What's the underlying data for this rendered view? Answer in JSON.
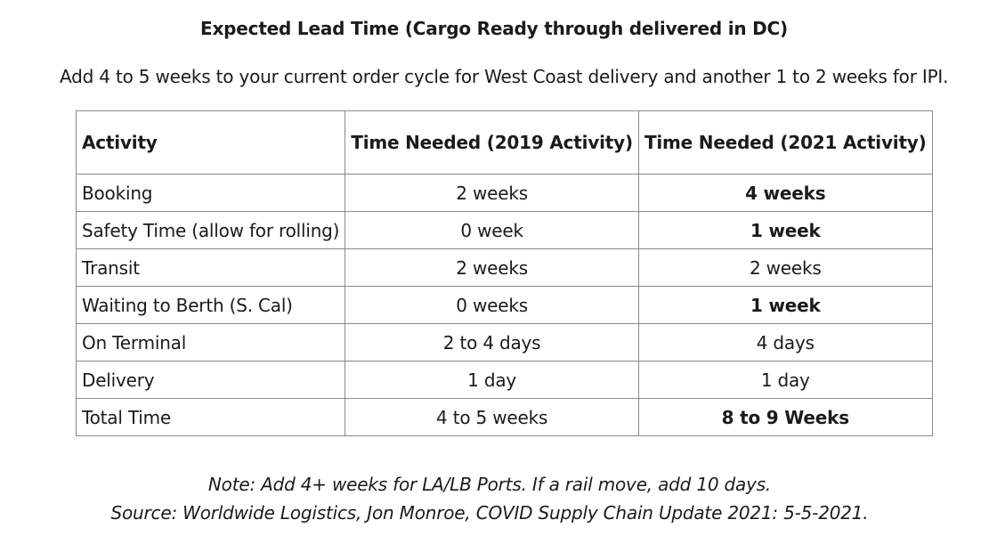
{
  "title": "Expected Lead Time (Cargo Ready through delivered in DC)",
  "subtitle": "Add 4 to 5 weeks to your current order cycle for West Coast delivery and another 1 to 2 weeks for IPI.",
  "table": {
    "headers": [
      "Activity",
      "Time Needed (2019 Activity)",
      "Time Needed (2021 Activity)"
    ],
    "rows": [
      {
        "activity": "Booking",
        "y2019": "2 weeks",
        "y2021": "4 weeks",
        "emphasis_2021": true
      },
      {
        "activity": "Safety Time (allow for rolling)",
        "y2019": "0 week",
        "y2021": "1 week",
        "emphasis_2021": true
      },
      {
        "activity": "Transit",
        "y2019": "2 weeks",
        "y2021": "2 weeks",
        "emphasis_2021": false
      },
      {
        "activity": "Waiting to Berth (S. Cal)",
        "y2019": "0 weeks",
        "y2021": "1 week",
        "emphasis_2021": true
      },
      {
        "activity": "On Terminal",
        "y2019": "2 to 4 days",
        "y2021": "4 days",
        "emphasis_2021": false
      },
      {
        "activity": "Delivery",
        "y2019": "1 day",
        "y2021": "1 day",
        "emphasis_2021": false
      },
      {
        "activity": "Total Time",
        "y2019": "4 to 5 weeks",
        "y2021": "8 to 9 Weeks",
        "emphasis_2021": true
      }
    ]
  },
  "note": "Note: Add 4+ weeks for LA/LB Ports. If a rail move, add 10 days.",
  "source": "Source: Worldwide Logistics, Jon Monroe, COVID Supply Chain Update 2021: 5-5-2021."
}
